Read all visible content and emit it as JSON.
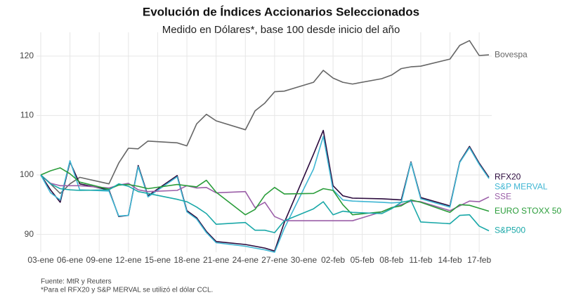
{
  "chart_data": {
    "type": "line",
    "title": "Evolución de Índices Accionarios Seleccionados",
    "subtitle": "Medido en Dólares*, base 100 desde inicio del año",
    "notes": [
      "Fuente: MtR y Reuters",
      "*Para el RFX20 y S&P MERVAL se utilizó el dólar CCL."
    ],
    "x": [
      0,
      1,
      2,
      3,
      4,
      7,
      8,
      9,
      10,
      11,
      14,
      15,
      16,
      17,
      18,
      21,
      22,
      23,
      24,
      25,
      28,
      29,
      30,
      31,
      32,
      35,
      36,
      37,
      38,
      39,
      42,
      43,
      44,
      45,
      46
    ],
    "xlim": [
      0,
      46
    ],
    "xticks": [
      {
        "value": 0,
        "label": "03-ene"
      },
      {
        "value": 3,
        "label": "06-ene"
      },
      {
        "value": 6,
        "label": "09-ene"
      },
      {
        "value": 9,
        "label": "12-ene"
      },
      {
        "value": 12,
        "label": "15-ene"
      },
      {
        "value": 15,
        "label": "18-ene"
      },
      {
        "value": 18,
        "label": "21-ene"
      },
      {
        "value": 21,
        "label": "24-ene"
      },
      {
        "value": 24,
        "label": "27-ene"
      },
      {
        "value": 27,
        "label": "30-ene"
      },
      {
        "value": 30,
        "label": "02-feb"
      },
      {
        "value": 33,
        "label": "05-feb"
      },
      {
        "value": 36,
        "label": "08-feb"
      },
      {
        "value": 39,
        "label": "11-feb"
      },
      {
        "value": 42,
        "label": "14-feb"
      },
      {
        "value": 45,
        "label": "17-feb"
      }
    ],
    "ylim": [
      87,
      124
    ],
    "yticks": [
      90,
      100,
      110,
      120
    ],
    "grid": true,
    "series": [
      {
        "name": "Bovespa",
        "color": "#666666",
        "values": [
          100,
          98.5,
          96.9,
          98.5,
          99.6,
          98.5,
          102,
          104.5,
          104.4,
          105.7,
          105.4,
          104.9,
          108.6,
          110.2,
          109.1,
          107.6,
          110.8,
          112.1,
          114,
          114.1,
          115.6,
          117.6,
          116.3,
          115.6,
          115.3,
          116.2,
          116.8,
          117.9,
          118.2,
          118.3,
          119.5,
          121.8,
          122.6,
          120.1,
          120.2
        ]
      },
      {
        "name": "RFX20",
        "color": "#2b0a3d",
        "values": [
          100,
          97.5,
          95.4,
          102.2,
          98.5,
          97.5,
          93,
          93.2,
          101.6,
          96.5,
          99.9,
          94,
          92.8,
          90.5,
          88.8,
          88.3,
          88,
          87.7,
          87.2,
          92,
          103.5,
          107.5,
          98.2,
          96.5,
          96.1,
          96,
          95.9,
          95.8,
          102.2,
          96.2,
          94.8,
          102.2,
          104.8,
          102,
          99.6
        ]
      },
      {
        "name": "S&P MERVAL",
        "color": "#3fb6d3",
        "values": [
          100,
          97,
          95.8,
          102.4,
          97.5,
          97.3,
          93.1,
          93.2,
          101.4,
          96.3,
          99.7,
          93.8,
          92.6,
          90.3,
          88.6,
          88,
          87.7,
          87.4,
          87,
          91,
          101,
          106.5,
          97.5,
          95.8,
          95.6,
          95.4,
          95.3,
          95.4,
          102.1,
          96,
          94.6,
          102.1,
          104.6,
          101.8,
          99.4
        ]
      },
      {
        "name": "SSE",
        "color": "#9b5fa8",
        "values": [
          100,
          98.6,
          98.2,
          98.2,
          98.2,
          97.8,
          98.3,
          98.6,
          97.5,
          97.2,
          97.4,
          98.2,
          97.8,
          97.9,
          97,
          97.2,
          94.5,
          95.4,
          93,
          92.3,
          92.3,
          92.3,
          92.3,
          92.3,
          92.3,
          93.8,
          94.5,
          95,
          95.6,
          95.5,
          94,
          94.8,
          95.6,
          95.5,
          96.3
        ]
      },
      {
        "name": "EURO STOXX 50",
        "color": "#2a9d3a",
        "values": [
          100,
          100.7,
          101.2,
          100.2,
          98.8,
          97.6,
          98.3,
          98.4,
          98.1,
          97.7,
          98.4,
          98.2,
          98,
          99.1,
          97.1,
          93.3,
          94.2,
          96.6,
          97.9,
          96.8,
          96.9,
          97.7,
          97.4,
          95,
          93.3,
          93.8,
          94.5,
          94.8,
          95.8,
          95.4,
          93.7,
          95,
          94.9,
          94.4,
          93.9
        ]
      },
      {
        "name": "S&P500",
        "color": "#1aa8a8",
        "values": [
          100,
          98.5,
          97.7,
          97.5,
          97.4,
          97.5,
          98.5,
          98.1,
          97.2,
          96.9,
          95.9,
          95.5,
          94.6,
          93.5,
          91.7,
          92,
          90.7,
          90.7,
          90.3,
          92.3,
          94.3,
          95.5,
          93.3,
          93.9,
          93.7,
          93.5,
          94.3,
          95.4,
          95.7,
          92.1,
          91.8,
          93.2,
          93.3,
          91.4,
          90.6
        ]
      }
    ]
  }
}
